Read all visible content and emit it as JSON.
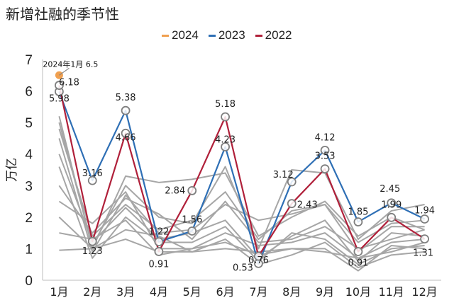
{
  "title": "新增社融的季节性",
  "chart_data": {
    "type": "line",
    "title": "新增社融的季节性",
    "ylabel": "万亿",
    "xlabel": "",
    "ylim": [
      0,
      7
    ],
    "yticks": [
      "0",
      "1",
      "2",
      "3",
      "4",
      "5",
      "6",
      "7"
    ],
    "categories": [
      "1月",
      "2月",
      "3月",
      "4月",
      "5月",
      "6月",
      "7月",
      "8月",
      "9月",
      "10月",
      "11月",
      "12月"
    ],
    "grid": false,
    "legend_position": "top",
    "series": [
      {
        "name": "2024",
        "color": "#f0a050",
        "values": [
          6.5,
          null,
          null,
          null,
          null,
          null,
          null,
          null,
          null,
          null,
          null,
          null
        ]
      },
      {
        "name": "2023",
        "color": "#2e6fb5",
        "values": [
          5.98,
          3.16,
          5.38,
          1.22,
          1.56,
          4.23,
          0.53,
          3.12,
          4.12,
          1.85,
          2.45,
          1.94
        ]
      },
      {
        "name": "2022",
        "color": "#b0203a",
        "values": [
          6.18,
          1.23,
          4.66,
          0.91,
          2.84,
          5.18,
          0.76,
          2.43,
          3.53,
          0.91,
          1.99,
          1.31
        ]
      }
    ],
    "background_series_color": "#a6a6a6",
    "background_series": [
      [
        5.2,
        1.0,
        3.3,
        3.1,
        3.2,
        3.4,
        1.4,
        2.0,
        2.5,
        1.4,
        2.0,
        1.6
      ],
      [
        5.0,
        1.1,
        3.0,
        2.0,
        1.8,
        3.6,
        1.0,
        3.5,
        3.4,
        1.3,
        2.2,
        2.4
      ],
      [
        4.8,
        1.4,
        2.4,
        1.6,
        1.9,
        2.8,
        1.3,
        2.2,
        2.4,
        0.9,
        1.7,
        1.7
      ],
      [
        4.5,
        0.9,
        2.7,
        1.5,
        1.6,
        2.4,
        1.9,
        2.1,
        2.4,
        1.2,
        1.8,
        1.9
      ],
      [
        4.0,
        1.2,
        2.3,
        1.3,
        1.5,
        1.9,
        0.7,
        1.4,
        1.9,
        0.6,
        1.5,
        1.4
      ],
      [
        3.6,
        0.7,
        2.0,
        1.2,
        1.2,
        1.7,
        0.6,
        1.5,
        1.3,
        0.5,
        1.0,
        1.1
      ],
      [
        3.0,
        1.5,
        2.6,
        2.1,
        1.3,
        2.5,
        1.2,
        1.3,
        1.7,
        1.0,
        1.3,
        1.6
      ],
      [
        2.5,
        1.8,
        2.8,
        1.0,
        1.0,
        1.5,
        1.1,
        1.2,
        1.5,
        0.7,
        0.9,
        1.2
      ],
      [
        2.0,
        1.0,
        1.6,
        1.4,
        0.9,
        1.3,
        0.5,
        0.8,
        1.2,
        0.4,
        0.8,
        0.9
      ],
      [
        1.5,
        1.3,
        1.9,
        0.8,
        1.0,
        1.2,
        0.8,
        1.0,
        1.0,
        0.3,
        1.1,
        1.0
      ],
      [
        0.95,
        1.0,
        1.3,
        0.9,
        0.9,
        1.0,
        0.9,
        1.0,
        0.9,
        0.7,
        1.2,
        1.3
      ]
    ],
    "annotation": "2024年1月 6.5",
    "data_labels": {
      "2023": [
        "5.98",
        "3.16",
        "5.38",
        "1.22",
        "1.56",
        "4.23",
        "0.53",
        "3.12",
        "4.12",
        "1.85",
        "2.45",
        "1.94"
      ],
      "2022": [
        "6.18",
        "1.23",
        "4.66",
        "0.91",
        "2.84",
        "5.18",
        "0.76",
        "2.43",
        "3.53",
        "0.91",
        "1.99",
        "1.31"
      ]
    }
  }
}
